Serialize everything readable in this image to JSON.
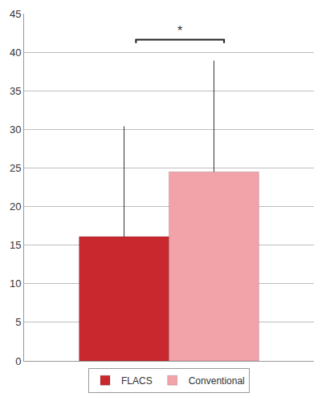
{
  "chart_data": {
    "type": "bar",
    "categories": [
      null
    ],
    "series": [
      {
        "name": "FLACS",
        "color": "#c8282e",
        "values": [
          16.1
        ],
        "error": [
          14.3
        ]
      },
      {
        "name": "Conventional",
        "color": "#f2a3aa",
        "values": [
          24.5
        ],
        "error": [
          14.4
        ]
      }
    ],
    "ylim": [
      0,
      45
    ],
    "yticks": [
      0,
      5,
      10,
      15,
      20,
      25,
      30,
      35,
      40,
      45
    ],
    "grid": true,
    "legend": "bottom",
    "tick_labels": "y",
    "annotations": [
      {
        "text": "*"
      }
    ]
  }
}
